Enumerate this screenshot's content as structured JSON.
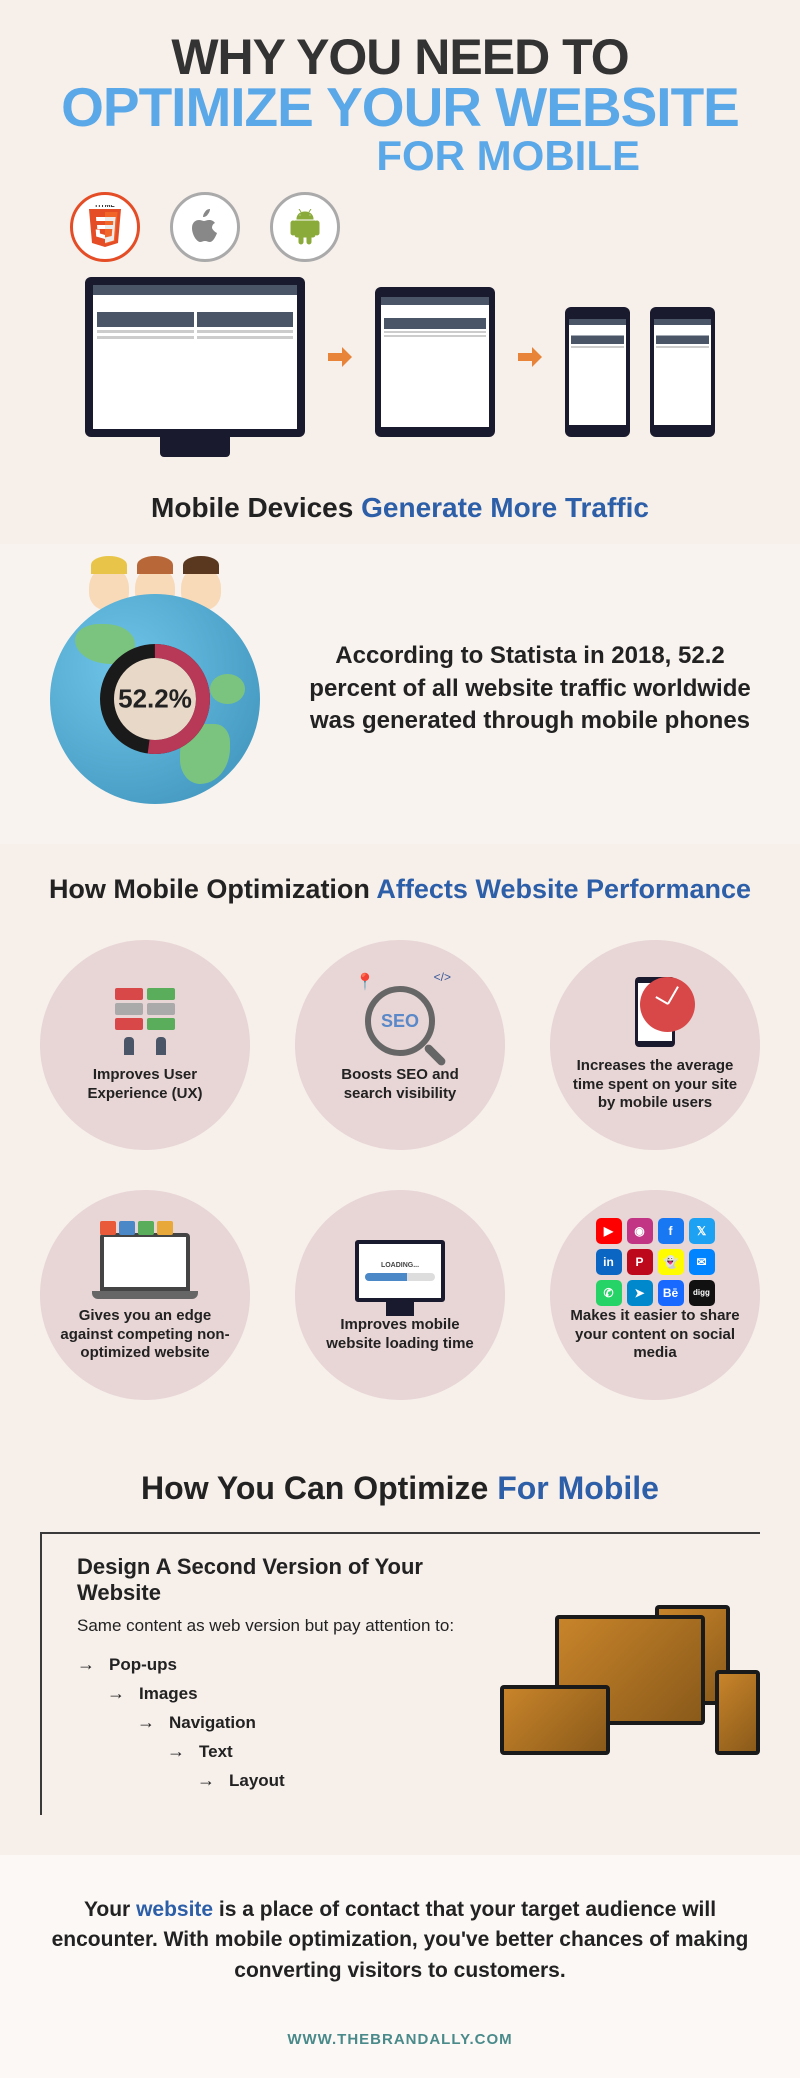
{
  "hero": {
    "title_line1": "WHY YOU NEED TO",
    "title_line2": "OPTIMIZE YOUR WEBSITE",
    "title_line3": "FOR MOBILE",
    "tech_icons": [
      "HTML5",
      "apple",
      "android"
    ],
    "subtitle_dark": "Mobile Devices",
    "subtitle_blue": "Generate More Traffic",
    "colors": {
      "dark": "#333333",
      "blue": "#5aa8e8",
      "bg": "#f6efea",
      "arrow": "#e8833a"
    }
  },
  "stat": {
    "percent_label": "52.2%",
    "percent_value": 52.2,
    "text": "According to Statista in 2018, 52.2 percent of all website traffic worldwide was generated through mobile phones",
    "donut_colors": {
      "fill": "#b83858",
      "track": "#1a1a1a",
      "center": "#e8d8c8"
    }
  },
  "benefits": {
    "heading_dark": "How  Mobile Optimization",
    "heading_blue": "Affects Website Performance",
    "circle_bg": "#e8d5d5",
    "items": [
      {
        "label": "Improves User Experience (UX)"
      },
      {
        "label": "Boosts SEO and search visibility"
      },
      {
        "label": "Increases the average time spent on your site by mobile users"
      },
      {
        "label": "Gives you an edge against competing non-optimized website"
      },
      {
        "label": "Improves mobile website loading time"
      },
      {
        "label": "Makes it easier to share your content on social media"
      }
    ],
    "social_icons": [
      {
        "bg": "#ff0000",
        "glyph": "▶"
      },
      {
        "bg": "#c13584",
        "glyph": "◉"
      },
      {
        "bg": "#1877f2",
        "glyph": "f"
      },
      {
        "bg": "#1da1f2",
        "glyph": "𝕏"
      },
      {
        "bg": "#0a66c2",
        "glyph": "in"
      },
      {
        "bg": "#bd081c",
        "glyph": "P"
      },
      {
        "bg": "#fffc00",
        "glyph": "👻"
      },
      {
        "bg": "#0084ff",
        "glyph": "✉"
      },
      {
        "bg": "#25d366",
        "glyph": "✆"
      },
      {
        "bg": "#0088cc",
        "glyph": "➤"
      },
      {
        "bg": "#1769ff",
        "glyph": "Bē"
      },
      {
        "bg": "#111111",
        "glyph": "digg"
      }
    ]
  },
  "optimize": {
    "heading_dark": "How You Can Optimize",
    "heading_blue": "For Mobile",
    "box_heading": "Design A Second Version of Your Website",
    "box_sub": "Same content as web version but pay attention to:",
    "items": [
      "Pop-ups",
      "Images",
      "Navigation",
      "Text",
      "Layout"
    ]
  },
  "closing": {
    "pre": "Your ",
    "link_word": "website",
    "post": " is a place of contact that your target audience will encounter. With mobile optimization, you've better chances of making converting visitors to customers."
  },
  "footer": {
    "url": "WWW.THEBRANDALLY.COM"
  }
}
